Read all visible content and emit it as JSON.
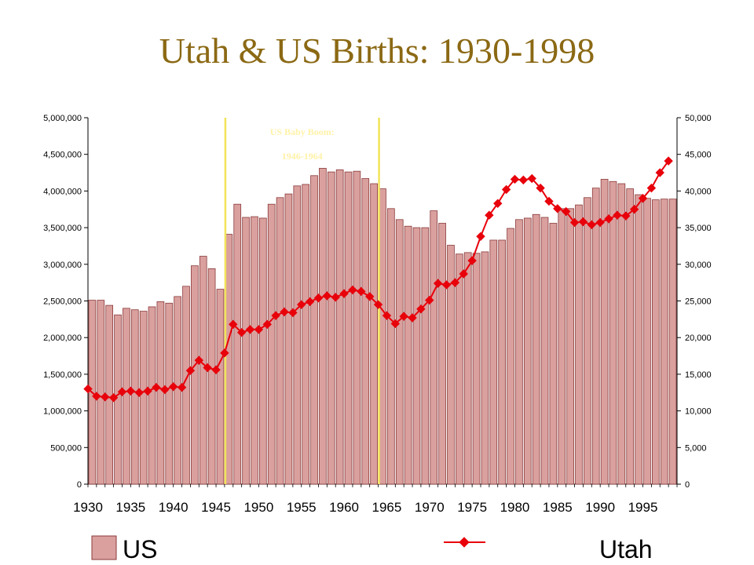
{
  "title": "Utah & US Births: 1930-1998",
  "colors": {
    "title": "#8B6914",
    "bar_fill": "#D9A09E",
    "bar_stroke": "#8B3A3A",
    "line": "#E8000B",
    "annotation": "#FFF2A8",
    "boom_lines": "#F2E35A"
  },
  "chart_data": {
    "type": "bar+line",
    "x": [
      1930,
      1931,
      1932,
      1933,
      1934,
      1935,
      1936,
      1937,
      1938,
      1939,
      1940,
      1941,
      1942,
      1943,
      1944,
      1945,
      1946,
      1947,
      1948,
      1949,
      1950,
      1951,
      1952,
      1953,
      1954,
      1955,
      1956,
      1957,
      1958,
      1959,
      1960,
      1961,
      1962,
      1963,
      1964,
      1965,
      1966,
      1967,
      1968,
      1969,
      1970,
      1971,
      1972,
      1973,
      1974,
      1975,
      1976,
      1977,
      1978,
      1979,
      1980,
      1981,
      1982,
      1983,
      1984,
      1985,
      1986,
      1987,
      1988,
      1989,
      1990,
      1991,
      1992,
      1993,
      1994,
      1995,
      1996,
      1997,
      1998
    ],
    "series": [
      {
        "name": "US",
        "type": "bar",
        "axis": "left",
        "values": [
          2510000,
          2510000,
          2440000,
          2310000,
          2400000,
          2380000,
          2360000,
          2420000,
          2490000,
          2470000,
          2560000,
          2700000,
          2980000,
          3110000,
          2940000,
          2660000,
          3410000,
          3820000,
          3640000,
          3650000,
          3630000,
          3820000,
          3910000,
          3960000,
          4070000,
          4090000,
          4210000,
          4310000,
          4260000,
          4290000,
          4260000,
          4270000,
          4170000,
          4100000,
          4030000,
          3760000,
          3610000,
          3520000,
          3500000,
          3500000,
          3730000,
          3560000,
          3260000,
          3140000,
          3160000,
          3150000,
          3170000,
          3330000,
          3330000,
          3490000,
          3610000,
          3630000,
          3680000,
          3640000,
          3560000,
          3760000,
          3760000,
          3810000,
          3910000,
          4040000,
          4160000,
          4130000,
          4100000,
          4030000,
          3950000,
          3900000,
          3880000,
          3890000,
          3890000
        ]
      },
      {
        "name": "Utah",
        "type": "line",
        "axis": "right",
        "values": [
          13000,
          12000,
          11900,
          11800,
          12600,
          12700,
          12500,
          12700,
          13200,
          12900,
          13300,
          13200,
          15500,
          16900,
          15900,
          15600,
          17900,
          21800,
          20700,
          21100,
          21100,
          21800,
          23000,
          23500,
          23400,
          24500,
          24900,
          25400,
          25700,
          25500,
          26000,
          26500,
          26300,
          25600,
          24500,
          23000,
          21900,
          22900,
          22700,
          23900,
          25100,
          27400,
          27200,
          27500,
          28700,
          30500,
          33800,
          36700,
          38300,
          40200,
          41600,
          41500,
          41700,
          40400,
          38600,
          37600,
          37200,
          35700,
          35800,
          35400,
          35700,
          36200,
          36700,
          36600,
          37500,
          39000,
          40400,
          42500,
          44100
        ]
      }
    ],
    "y_left": {
      "min": 0,
      "max": 5000000,
      "step": 500000,
      "ticks": [
        "0",
        "500,000",
        "1,000,000",
        "1,500,000",
        "2,000,000",
        "2,500,000",
        "3,000,000",
        "3,500,000",
        "4,000,000",
        "4,500,000",
        "5,000,000"
      ]
    },
    "y_right": {
      "min": 0,
      "max": 50000,
      "step": 5000,
      "ticks": [
        "0",
        "5,000",
        "10,000",
        "15,000",
        "20,000",
        "25,000",
        "30,000",
        "35,000",
        "40,000",
        "45,000",
        "50,000"
      ]
    },
    "x_ticks": [
      "1930",
      "1935",
      "1940",
      "1945",
      "1950",
      "1955",
      "1960",
      "1965",
      "1970",
      "1975",
      "1980",
      "1985",
      "1990",
      "1995"
    ],
    "annotation": {
      "lines": [
        "US Baby Boom:",
        "1946-1964"
      ],
      "start_year": 1946,
      "end_year": 1964
    },
    "legend": {
      "position": "bottom",
      "items": [
        "US",
        "Utah"
      ]
    }
  }
}
